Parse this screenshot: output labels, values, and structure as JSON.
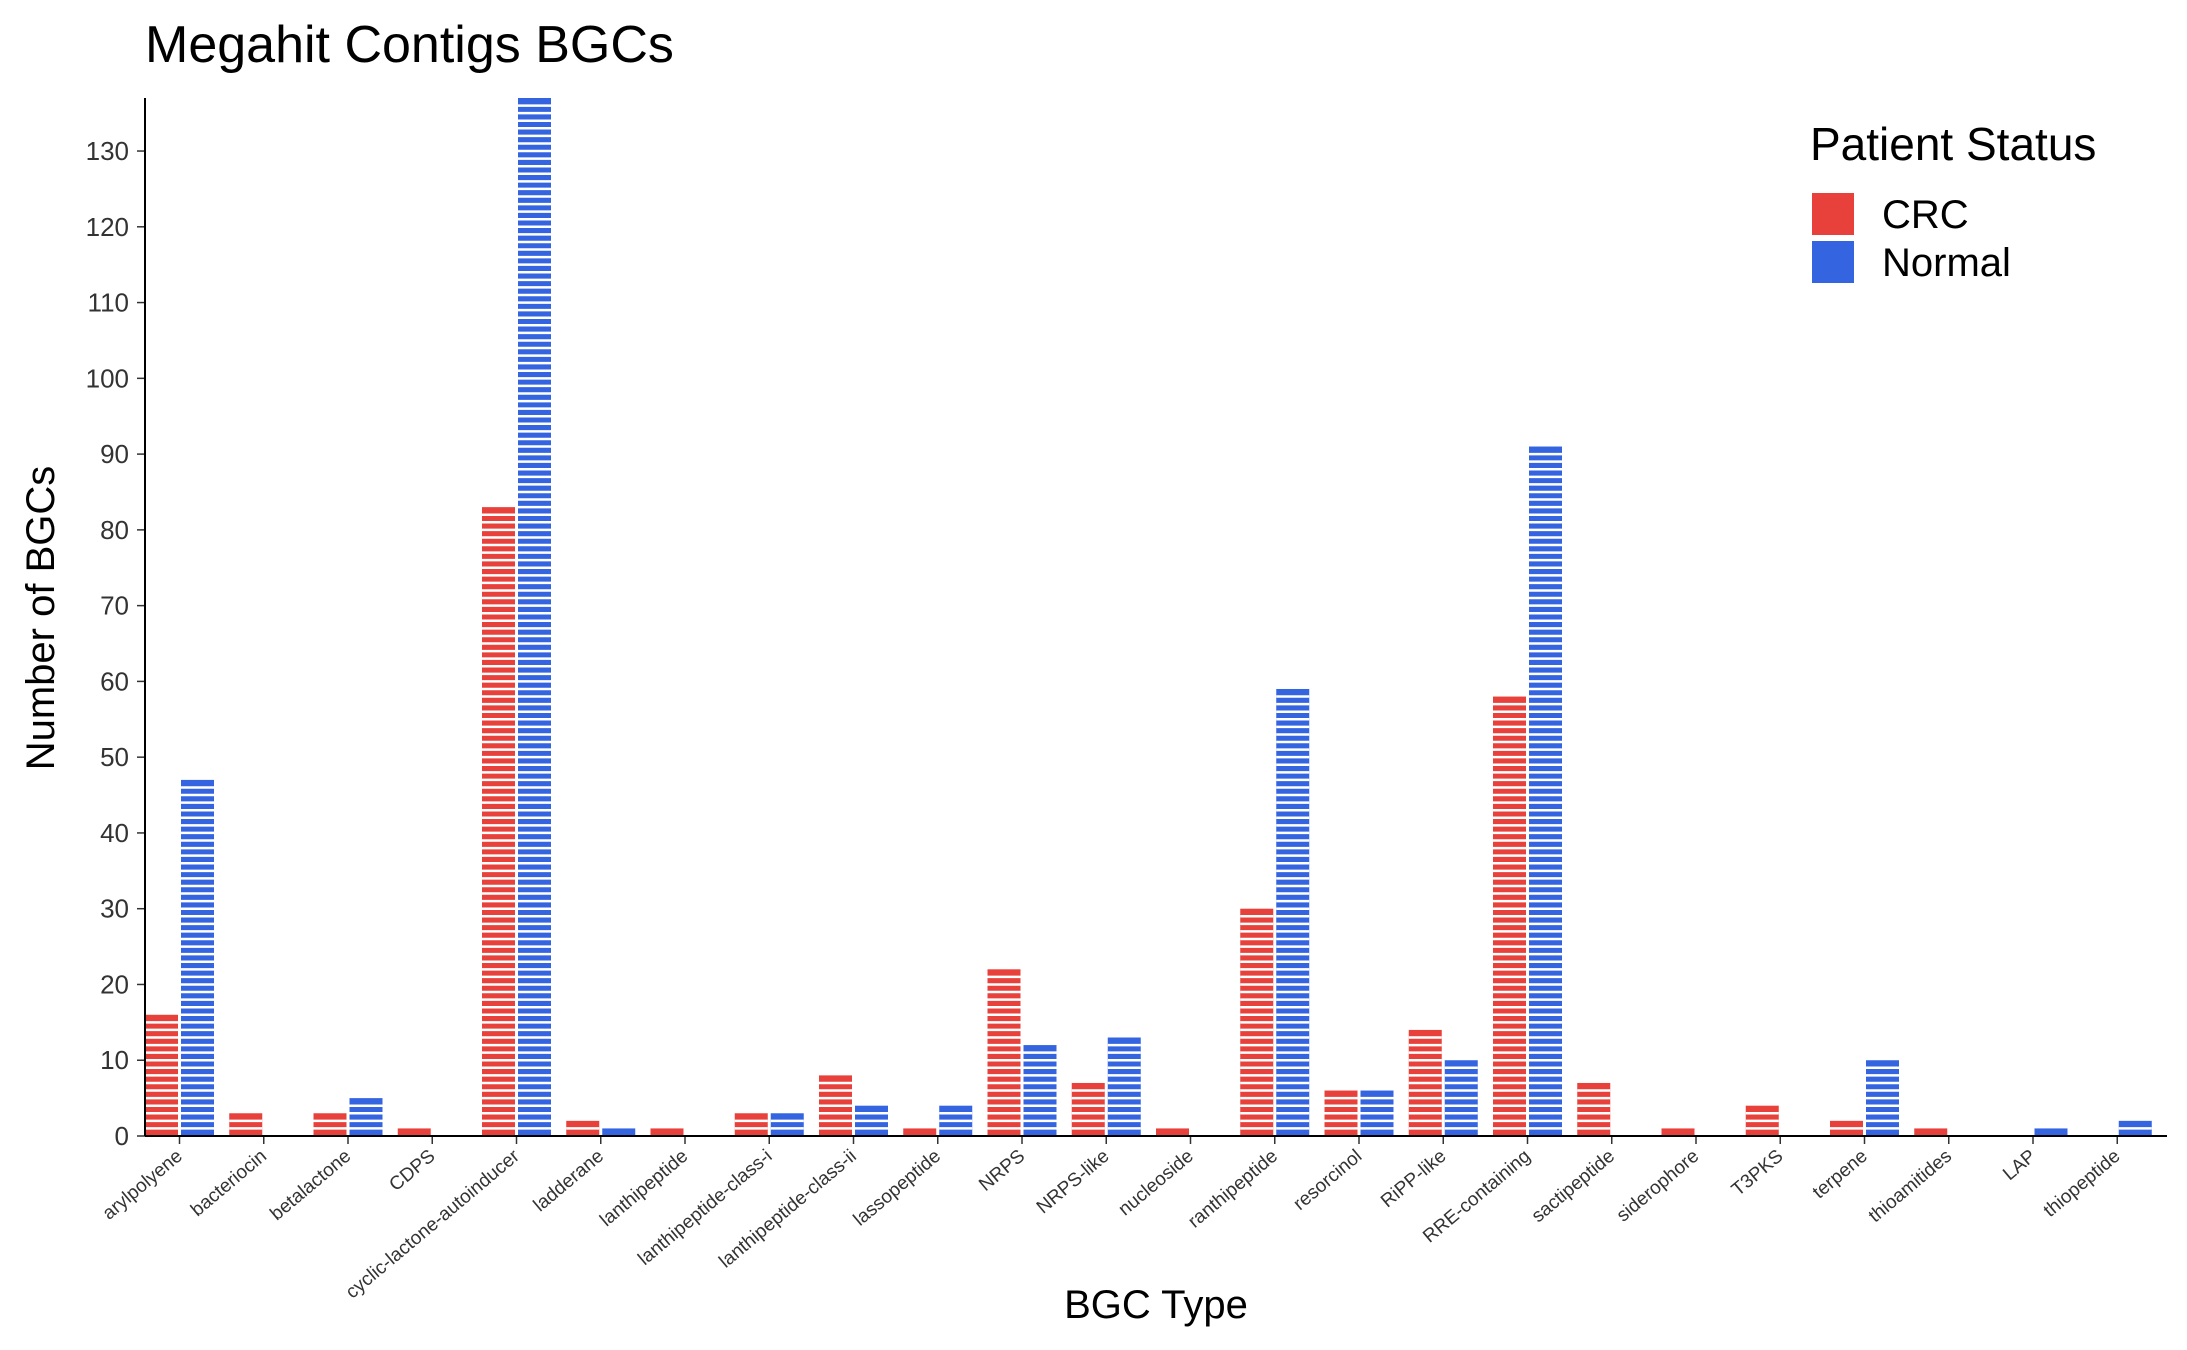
{
  "chart_data": {
    "type": "bar",
    "title": "Megahit Contigs BGCs",
    "xlabel": "BGC Type",
    "ylabel": "Number of BGCs",
    "ylim": [
      0,
      137
    ],
    "yticks": [
      0,
      10,
      20,
      30,
      40,
      50,
      60,
      70,
      80,
      90,
      100,
      110,
      120,
      130
    ],
    "grid": false,
    "legend": {
      "title": "Patient Status",
      "placement": "top-right"
    },
    "categories": [
      "arylpolyene",
      "bacteriocin",
      "betalactone",
      "CDPS",
      "cyclic-lactone-autoinducer",
      "ladderane",
      "lanthipeptide",
      "lanthipeptide-class-i",
      "lanthipeptide-class-ii",
      "lassopeptide",
      "NRPS",
      "NRPS-like",
      "nucleoside",
      "ranthipeptide",
      "resorcinol",
      "RiPP-like",
      "RRE-containing",
      "sactipeptide",
      "siderophore",
      "T3PKS",
      "terpene",
      "thioamitides",
      "LAP",
      "thiopeptide"
    ],
    "series": [
      {
        "name": "CRC",
        "color": "#e8403a",
        "values": [
          16,
          3,
          3,
          1,
          83,
          2,
          1,
          3,
          8,
          1,
          22,
          7,
          1,
          30,
          6,
          14,
          58,
          7,
          1,
          4,
          2,
          1,
          0,
          0
        ]
      },
      {
        "name": "Normal",
        "color": "#3464e0",
        "values": [
          47,
          0,
          5,
          0,
          137,
          1,
          0,
          3,
          4,
          4,
          12,
          13,
          0,
          59,
          6,
          10,
          91,
          0,
          0,
          0,
          10,
          0,
          1,
          2
        ]
      }
    ]
  }
}
